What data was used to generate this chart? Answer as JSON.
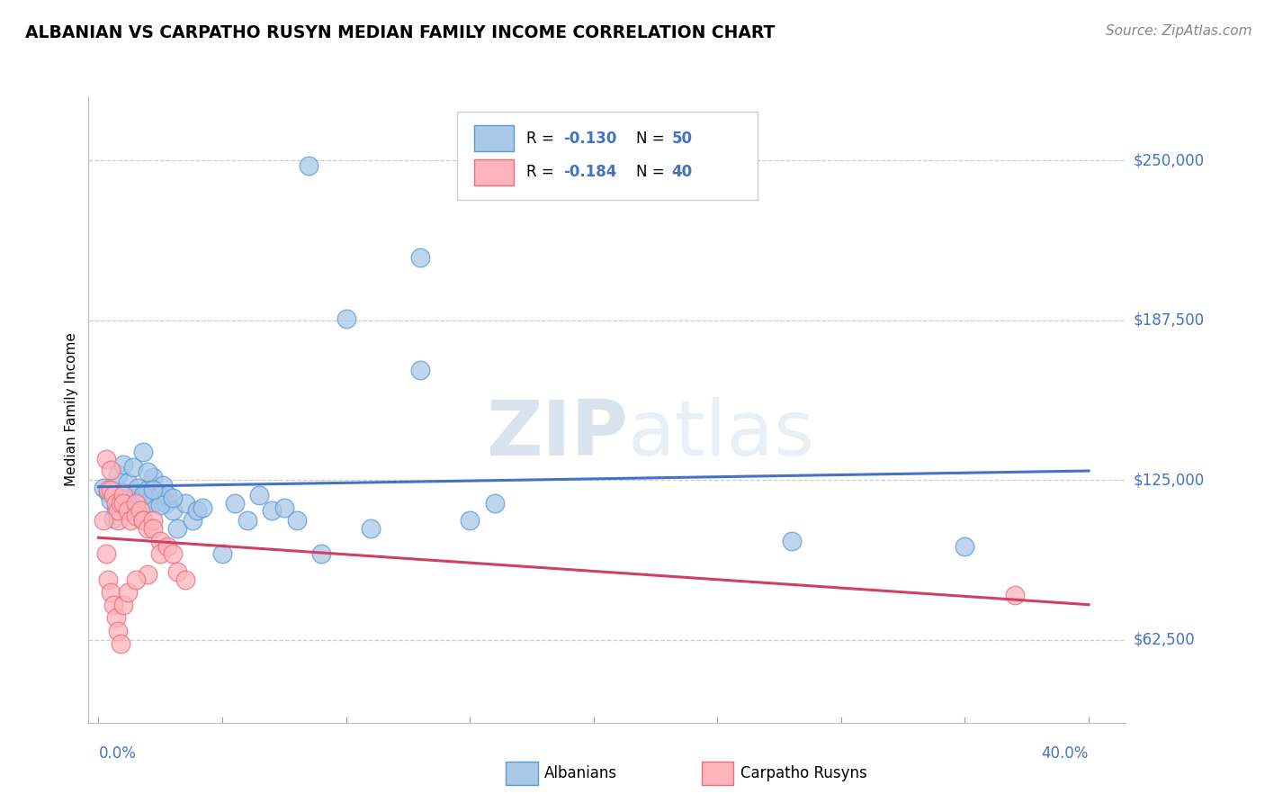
{
  "title": "ALBANIAN VS CARPATHO RUSYN MEDIAN FAMILY INCOME CORRELATION CHART",
  "source": "Source: ZipAtlas.com",
  "ylabel": "Median Family Income",
  "watermark_zip": "ZIP",
  "watermark_atlas": "atlas",
  "ytick_labels": [
    "$62,500",
    "$125,000",
    "$187,500",
    "$250,000"
  ],
  "ytick_values": [
    62500,
    125000,
    187500,
    250000
  ],
  "ymin": 30000,
  "ymax": 275000,
  "xmin": -0.004,
  "xmax": 0.415,
  "blue_color": "#a8c8e8",
  "blue_edge": "#5b9bd5",
  "pink_color": "#ffb3ba",
  "pink_edge": "#e87080",
  "blue_line_color": "#4472c4",
  "pink_line_color": "#d04060",
  "legend_r1": "R = -0.130",
  "legend_n1": "N = 50",
  "legend_r2": "R = -0.184",
  "legend_n2": "N = 40",
  "albanians_x": [
    0.085,
    0.13,
    0.1,
    0.13,
    0.002,
    0.004,
    0.005,
    0.006,
    0.007,
    0.008,
    0.01,
    0.01,
    0.012,
    0.014,
    0.015,
    0.016,
    0.017,
    0.018,
    0.02,
    0.02,
    0.022,
    0.022,
    0.025,
    0.026,
    0.027,
    0.028,
    0.03,
    0.032,
    0.035,
    0.038,
    0.04,
    0.042,
    0.05,
    0.055,
    0.06,
    0.065,
    0.07,
    0.075,
    0.08,
    0.09,
    0.11,
    0.15,
    0.16,
    0.28,
    0.35,
    0.02,
    0.025,
    0.018,
    0.022,
    0.03
  ],
  "albanians_y": [
    248000,
    212000,
    188000,
    168000,
    122000,
    120000,
    117000,
    110000,
    113000,
    127000,
    131000,
    120000,
    124000,
    130000,
    120000,
    122000,
    117000,
    136000,
    121000,
    116000,
    126000,
    116000,
    119000,
    123000,
    116000,
    119000,
    113000,
    106000,
    116000,
    109000,
    113000,
    114000,
    96000,
    116000,
    109000,
    119000,
    113000,
    114000,
    109000,
    96000,
    106000,
    109000,
    116000,
    101000,
    99000,
    128000,
    115000,
    119000,
    121000,
    118000
  ],
  "rusyns_x": [
    0.003,
    0.004,
    0.005,
    0.005,
    0.006,
    0.007,
    0.008,
    0.008,
    0.009,
    0.01,
    0.01,
    0.012,
    0.013,
    0.015,
    0.015,
    0.017,
    0.018,
    0.018,
    0.02,
    0.022,
    0.022,
    0.025,
    0.025,
    0.028,
    0.03,
    0.032,
    0.035,
    0.002,
    0.003,
    0.004,
    0.005,
    0.006,
    0.007,
    0.008,
    0.009,
    0.01,
    0.012,
    0.37,
    0.02,
    0.015
  ],
  "rusyns_y": [
    133000,
    121000,
    129000,
    121000,
    119000,
    116000,
    109000,
    113000,
    116000,
    119000,
    116000,
    113000,
    109000,
    116000,
    111000,
    113000,
    109000,
    109000,
    106000,
    109000,
    106000,
    101000,
    96000,
    99000,
    96000,
    89000,
    86000,
    109000,
    96000,
    86000,
    81000,
    76000,
    71000,
    66000,
    61000,
    76000,
    81000,
    80000,
    88000,
    86000
  ]
}
